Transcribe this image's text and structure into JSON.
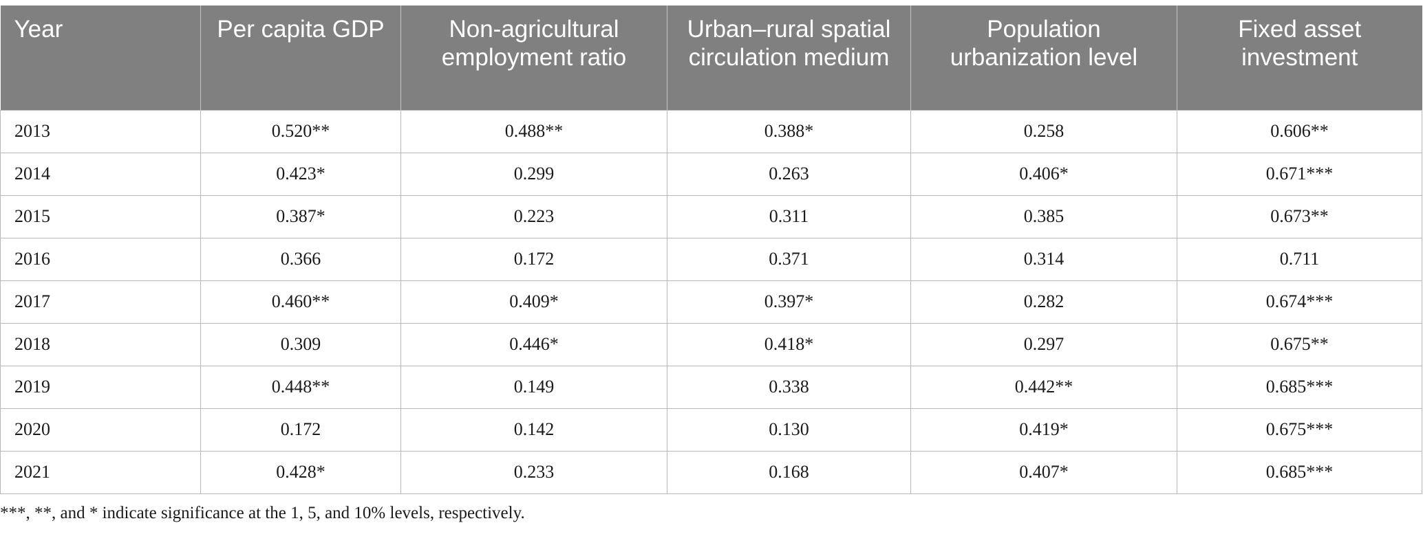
{
  "table": {
    "headers": [
      "Year",
      "Per capita GDP",
      "Non-agricultural employment ratio",
      "Urban–rural spatial circulation medium",
      "Population urbanization level",
      "Fixed asset investment"
    ],
    "rows": [
      [
        "2013",
        "0.520**",
        "0.488**",
        "0.388*",
        "0.258",
        "0.606**"
      ],
      [
        "2014",
        "0.423*",
        "0.299",
        "0.263",
        "0.406*",
        "0.671***"
      ],
      [
        "2015",
        "0.387*",
        "0.223",
        "0.311",
        "0.385",
        "0.673**"
      ],
      [
        "2016",
        "0.366",
        "0.172",
        "0.371",
        "0.314",
        "0.711"
      ],
      [
        "2017",
        "0.460**",
        "0.409*",
        "0.397*",
        "0.282",
        "0.674***"
      ],
      [
        "2018",
        "0.309",
        "0.446*",
        "0.418*",
        "0.297",
        "0.675**"
      ],
      [
        "2019",
        "0.448**",
        "0.149",
        "0.338",
        "0.442**",
        "0.685***"
      ],
      [
        "2020",
        "0.172",
        "0.142",
        "0.130",
        "0.419*",
        "0.675***"
      ],
      [
        "2021",
        "0.428*",
        "0.233",
        "0.168",
        "0.407*",
        "0.685***"
      ]
    ]
  },
  "footnote": "***, **, and * indicate significance at the 1, 5, and 10% levels, respectively.",
  "colors": {
    "header_background": "#808080",
    "header_text": "#ffffff",
    "grid_line": "#b7b7b7"
  }
}
